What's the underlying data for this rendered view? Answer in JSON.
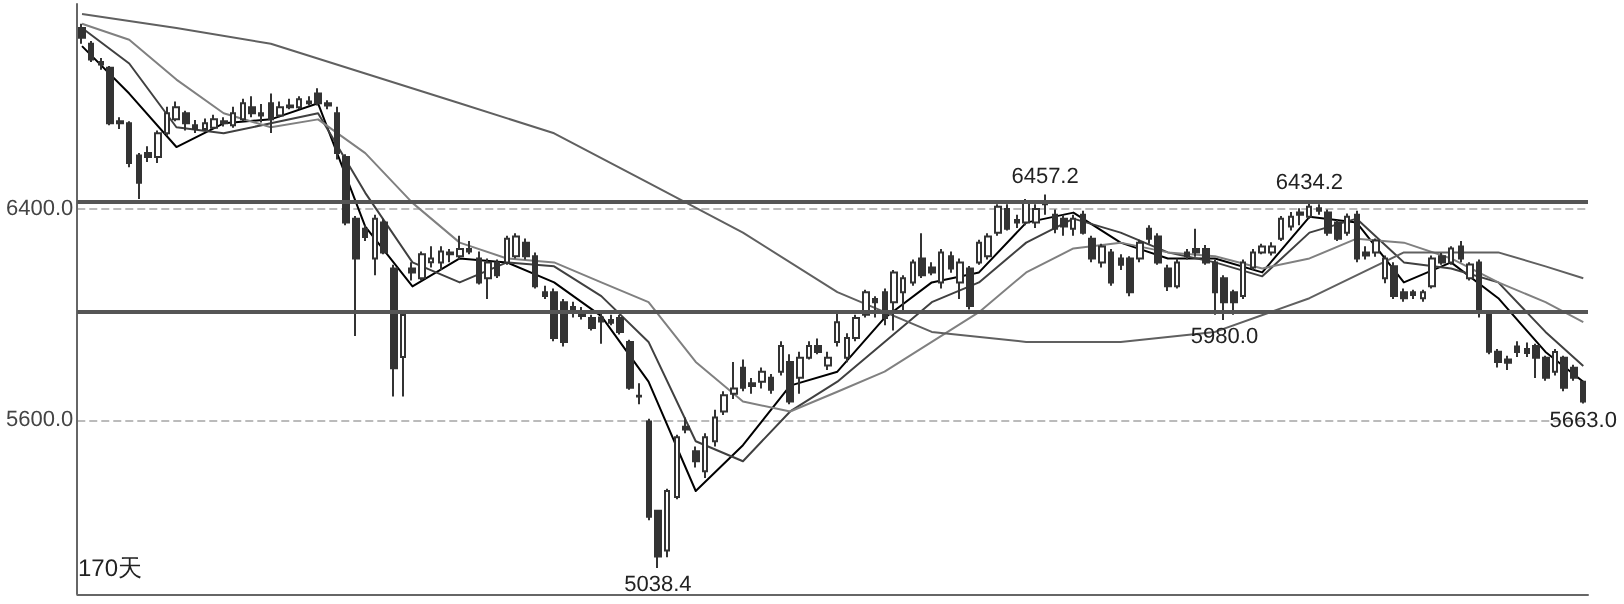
{
  "chart_data": {
    "type": "candlestick",
    "categories": [
      null,
      null,
      null,
      null,
      null,
      null,
      null,
      null,
      null,
      null,
      null,
      null,
      null,
      null,
      null,
      null,
      null,
      null,
      null,
      null,
      null,
      null,
      null,
      null,
      null,
      null,
      null,
      null,
      null,
      null,
      null,
      null,
      null,
      null,
      null,
      null,
      null,
      null,
      null,
      null,
      null,
      null,
      null,
      null,
      null,
      null,
      null,
      null,
      null,
      null,
      null,
      null,
      null,
      null,
      null,
      null,
      null,
      null,
      null,
      null,
      null,
      null,
      null,
      null,
      null,
      null,
      null,
      null,
      null,
      null,
      null,
      null,
      null,
      null,
      null,
      null,
      null,
      null,
      null,
      null,
      null,
      null,
      null,
      null,
      null,
      null,
      null,
      null,
      null,
      null,
      null,
      null,
      null,
      null,
      null,
      null,
      null,
      null,
      null,
      null,
      null,
      null,
      null,
      null,
      null,
      null,
      null,
      null,
      null,
      null,
      null,
      null,
      null,
      null,
      null,
      null,
      null,
      null,
      null,
      null,
      null,
      null,
      null,
      null,
      null,
      null,
      null,
      null,
      null,
      null,
      null,
      null,
      null,
      null,
      null,
      null,
      null,
      null,
      null,
      null,
      null,
      null,
      null,
      null,
      null,
      null,
      null,
      null,
      null,
      null,
      null,
      null,
      null,
      null,
      null,
      null,
      null,
      null,
      null,
      null
    ],
    "series": [
      {
        "type": "candlestick",
        "color": "#333333",
        "ohlc": [
          [
            7089,
            7105,
            7029,
            7052
          ],
          [
            7029,
            7040,
            6960,
            6969
          ],
          [
            6960,
            6975,
            6930,
            6950
          ],
          [
            6938,
            6945,
            6720,
            6727
          ],
          [
            6735,
            6750,
            6705,
            6727
          ],
          [
            6727,
            6735,
            6560,
            6576
          ],
          [
            6605,
            6614,
            6440,
            6501
          ],
          [
            6614,
            6640,
            6580,
            6599
          ],
          [
            6599,
            6700,
            6576,
            6689
          ],
          [
            6689,
            6790,
            6680,
            6765
          ],
          [
            6742,
            6810,
            6735,
            6788
          ],
          [
            6765,
            6775,
            6700,
            6727
          ],
          [
            6720,
            6740,
            6690,
            6705
          ],
          [
            6705,
            6745,
            6700,
            6727
          ],
          [
            6710,
            6760,
            6705,
            6742
          ],
          [
            6735,
            6750,
            6715,
            6727
          ],
          [
            6720,
            6790,
            6710,
            6765
          ],
          [
            6742,
            6820,
            6735,
            6803
          ],
          [
            6788,
            6830,
            6750,
            6765
          ],
          [
            6765,
            6800,
            6730,
            6757
          ],
          [
            6803,
            6840,
            6690,
            6742
          ],
          [
            6757,
            6810,
            6750,
            6788
          ],
          [
            6795,
            6820,
            6780,
            6788
          ],
          [
            6788,
            6830,
            6780,
            6818
          ],
          [
            6810,
            6830,
            6795,
            6803
          ],
          [
            6840,
            6860,
            6795,
            6803
          ],
          [
            6803,
            6815,
            6780,
            6795
          ],
          [
            6765,
            6790,
            6590,
            6614
          ],
          [
            6599,
            6610,
            6340,
            6350
          ],
          [
            6365,
            6375,
            5920,
            6214
          ],
          [
            6327,
            6340,
            6280,
            6295
          ],
          [
            6214,
            6380,
            6150,
            6365
          ],
          [
            6350,
            6365,
            6230,
            6237
          ],
          [
            6176,
            6190,
            5690,
            5797
          ],
          [
            5840,
            6010,
            5690,
            5999
          ],
          [
            6176,
            6200,
            6130,
            6161
          ],
          [
            6139,
            6240,
            6130,
            6230
          ],
          [
            6200,
            6260,
            6180,
            6214
          ],
          [
            6199,
            6260,
            6170,
            6240
          ],
          [
            6237,
            6250,
            6200,
            6230
          ],
          [
            6222,
            6300,
            6210,
            6250
          ],
          [
            6250,
            6280,
            6230,
            6240
          ],
          [
            6214,
            6240,
            6115,
            6123
          ],
          [
            6139,
            6214,
            6060,
            6199
          ],
          [
            6199,
            6210,
            6140,
            6150
          ],
          [
            6199,
            6300,
            6190,
            6289
          ],
          [
            6222,
            6310,
            6214,
            6297
          ],
          [
            6274,
            6290,
            6210,
            6222
          ],
          [
            6222,
            6237,
            6100,
            6108
          ],
          [
            6086,
            6110,
            6060,
            6071
          ],
          [
            6086,
            6100,
            5900,
            5912
          ],
          [
            6048,
            6060,
            5880,
            5897
          ],
          [
            6030,
            6050,
            5990,
            6010
          ],
          [
            6010,
            6030,
            5982,
            5995
          ],
          [
            5988,
            6000,
            5940,
            5950
          ],
          [
            5990,
            6010,
            5890,
            5975
          ],
          [
            5980,
            6000,
            5960,
            5970
          ],
          [
            5988,
            5999,
            5925,
            5935
          ],
          [
            5897,
            5905,
            5715,
            5723
          ],
          [
            5693,
            5740,
            5660,
            5690
          ],
          [
            5595,
            5605,
            5220,
            5233
          ],
          [
            5256,
            5260,
            5038.4,
            5082
          ],
          [
            5105,
            5340,
            5080,
            5331
          ],
          [
            5308,
            5545,
            5300,
            5535
          ],
          [
            5575,
            5610,
            5550,
            5565
          ],
          [
            5482,
            5500,
            5420,
            5444
          ],
          [
            5406,
            5550,
            5380,
            5535
          ],
          [
            5520,
            5640,
            5500,
            5610
          ],
          [
            5633,
            5710,
            5620,
            5695
          ],
          [
            5700,
            5821,
            5680,
            5720
          ],
          [
            5799,
            5830,
            5710,
            5723
          ],
          [
            5740,
            5760,
            5700,
            5730
          ],
          [
            5746,
            5800,
            5720,
            5784
          ],
          [
            5761,
            5775,
            5700,
            5715
          ],
          [
            5784,
            5900,
            5770,
            5882
          ],
          [
            5821,
            5850,
            5660,
            5671
          ],
          [
            5761,
            5860,
            5700,
            5837
          ],
          [
            5837,
            5900,
            5830,
            5882
          ],
          [
            5882,
            5910,
            5850,
            5859
          ],
          [
            5808,
            5860,
            5790,
            5837
          ],
          [
            5897,
            6010,
            5880,
            5972
          ],
          [
            5837,
            5930,
            5820,
            5912
          ],
          [
            5912,
            6000,
            5900,
            5988
          ],
          [
            6000,
            6095,
            5990,
            6086
          ],
          [
            6060,
            6070,
            5990,
            6048
          ],
          [
            6086,
            6100,
            5960,
            5988
          ],
          [
            6048,
            6170,
            5940,
            6161
          ],
          [
            6086,
            6150,
            6010,
            6139
          ],
          [
            6123,
            6210,
            6110,
            6199
          ],
          [
            6214,
            6310,
            6140,
            6150
          ],
          [
            6180,
            6200,
            6150,
            6161
          ],
          [
            6123,
            6250,
            6100,
            6237
          ],
          [
            6222,
            6240,
            6160,
            6176
          ],
          [
            6123,
            6214,
            6060,
            6199
          ],
          [
            6176,
            6185,
            6020,
            6033
          ],
          [
            6199,
            6285,
            6190,
            6274
          ],
          [
            6222,
            6310,
            6210,
            6297
          ],
          [
            6312,
            6420,
            6300,
            6410
          ],
          [
            6402,
            6420,
            6320,
            6327
          ],
          [
            6360,
            6380,
            6330,
            6350
          ],
          [
            6350,
            6440,
            6340,
            6425
          ],
          [
            6350,
            6420,
            6330,
            6402
          ],
          [
            6420,
            6457.2,
            6380,
            6425
          ],
          [
            6380,
            6400,
            6310,
            6327
          ],
          [
            6365,
            6380,
            6300,
            6335
          ],
          [
            6327,
            6380,
            6300,
            6365
          ],
          [
            6380,
            6395,
            6305,
            6312
          ],
          [
            6289,
            6300,
            6200,
            6214
          ],
          [
            6199,
            6270,
            6180,
            6259
          ],
          [
            6237,
            6250,
            6110,
            6123
          ],
          [
            6214,
            6230,
            6170,
            6190
          ],
          [
            6214,
            6222,
            6070,
            6086
          ],
          [
            6214,
            6285,
            6200,
            6274
          ],
          [
            6327,
            6340,
            6270,
            6289
          ],
          [
            6297,
            6310,
            6190,
            6199
          ],
          [
            6176,
            6190,
            6090,
            6108
          ],
          [
            6108,
            6214,
            6100,
            6199
          ],
          [
            6237,
            6250,
            6210,
            6222
          ],
          [
            6250,
            6327,
            6220,
            6237
          ],
          [
            6250,
            6265,
            6190,
            6199
          ],
          [
            6199,
            6210,
            6000,
            6086
          ],
          [
            6139,
            6150,
            5980.0,
            6048
          ],
          [
            6086,
            6095,
            6000,
            6048
          ],
          [
            6071,
            6210,
            6060,
            6199
          ],
          [
            6180,
            6250,
            6170,
            6237
          ],
          [
            6237,
            6270,
            6230,
            6259
          ],
          [
            6237,
            6275,
            6225,
            6259
          ],
          [
            6289,
            6375,
            6280,
            6365
          ],
          [
            6335,
            6390,
            6320,
            6372
          ],
          [
            6388,
            6405,
            6340,
            6380
          ],
          [
            6372,
            6434.2,
            6365,
            6410
          ],
          [
            6405,
            6420,
            6380,
            6395
          ],
          [
            6388,
            6400,
            6300,
            6312
          ],
          [
            6350,
            6360,
            6280,
            6289
          ],
          [
            6312,
            6385,
            6300,
            6372
          ],
          [
            6380,
            6395,
            6200,
            6214
          ],
          [
            6237,
            6260,
            6210,
            6225
          ],
          [
            6237,
            6290,
            6220,
            6282
          ],
          [
            6139,
            6225,
            6120,
            6214
          ],
          [
            6184,
            6200,
            6060,
            6071
          ],
          [
            6086,
            6100,
            6050,
            6063
          ],
          [
            6086,
            6095,
            6060,
            6075
          ],
          [
            6063,
            6095,
            6050,
            6086
          ],
          [
            6108,
            6225,
            6100,
            6214
          ],
          [
            6222,
            6235,
            6190,
            6199
          ],
          [
            6199,
            6260,
            6190,
            6252
          ],
          [
            6259,
            6280,
            6200,
            6214
          ],
          [
            6139,
            6200,
            6130,
            6191
          ],
          [
            6199,
            6210,
            5990,
            6010
          ],
          [
            6000,
            6010,
            5850,
            5860
          ],
          [
            5860,
            5870,
            5800,
            5821
          ],
          [
            5830,
            5845,
            5790,
            5818
          ],
          [
            5880,
            5900,
            5840,
            5859
          ],
          [
            5870,
            5895,
            5840,
            5855
          ],
          [
            5882,
            5890,
            5760,
            5837
          ],
          [
            5837,
            5845,
            5750,
            5761
          ],
          [
            5784,
            5870,
            5770,
            5859
          ],
          [
            5837,
            5845,
            5710,
            5723
          ],
          [
            5799,
            5810,
            5750,
            5761
          ],
          [
            5746,
            5750,
            5663.0,
            5671
          ]
        ]
      },
      {
        "type": "line",
        "color": "#000000",
        "values": [
          7020,
          null,
          null,
          null,
          null,
          6840,
          null,
          null,
          null,
          null,
          6637,
          null,
          null,
          null,
          null,
          6727,
          null,
          null,
          null,
          null,
          6742,
          null,
          null,
          null,
          null,
          6803,
          null,
          null,
          null,
          null,
          6335,
          null,
          null,
          null,
          null,
          6108,
          null,
          null,
          null,
          null,
          6214,
          null,
          null,
          null,
          null,
          6199,
          null,
          null,
          null,
          null,
          6123,
          null,
          null,
          null,
          null,
          5995,
          null,
          null,
          null,
          null,
          5746,
          null,
          null,
          null,
          null,
          5331,
          null,
          null,
          null,
          null,
          5505,
          null,
          null,
          null,
          null,
          5731,
          null,
          null,
          null,
          null,
          5784,
          null,
          null,
          null,
          null,
          5988,
          null,
          null,
          null,
          null,
          6123,
          null,
          null,
          null,
          null,
          6161,
          null,
          null,
          null,
          null,
          6350,
          null,
          null,
          null,
          null,
          6388,
          null,
          null,
          null,
          null,
          6274,
          null,
          null,
          null,
          null,
          6214,
          null,
          null,
          null,
          null,
          6214,
          null,
          null,
          null,
          null,
          6161,
          null,
          null,
          null,
          null,
          6372,
          null,
          null,
          null,
          null,
          6350,
          null,
          null,
          null,
          null,
          6123,
          null,
          null,
          null,
          null,
          6199,
          null,
          null,
          null,
          null,
          6063,
          null,
          null,
          null,
          null,
          5859,
          null,
          null,
          null,
          5746
        ]
      },
      {
        "type": "line",
        "color": "#404040",
        "values": [
          7089,
          null,
          null,
          null,
          null,
          6954,
          null,
          null,
          null,
          null,
          6712,
          null,
          null,
          null,
          null,
          6689,
          null,
          null,
          null,
          null,
          6727,
          null,
          null,
          null,
          null,
          6765,
          null,
          null,
          null,
          null,
          6463,
          null,
          null,
          null,
          null,
          6199,
          null,
          null,
          null,
          null,
          6123,
          null,
          null,
          null,
          null,
          6199,
          null,
          null,
          null,
          null,
          6184,
          null,
          null,
          null,
          null,
          6071,
          null,
          null,
          null,
          null,
          5897,
          null,
          null,
          null,
          null,
          5520,
          null,
          null,
          null,
          null,
          5444,
          null,
          null,
          null,
          null,
          5633,
          null,
          null,
          null,
          null,
          5746,
          null,
          null,
          null,
          null,
          5897,
          null,
          null,
          null,
          null,
          6048,
          null,
          null,
          null,
          null,
          6123,
          null,
          null,
          null,
          null,
          6274,
          null,
          null,
          null,
          null,
          6365,
          null,
          null,
          null,
          null,
          6312,
          null,
          null,
          null,
          null,
          6237,
          null,
          null,
          null,
          null,
          6199,
          null,
          null,
          null,
          null,
          6146,
          null,
          null,
          null,
          null,
          6312,
          null,
          null,
          null,
          null,
          6365,
          null,
          null,
          null,
          null,
          6199,
          null,
          null,
          null,
          null,
          6176,
          null,
          null,
          null,
          null,
          6123,
          null,
          null,
          null,
          null,
          5935,
          null,
          null,
          null,
          5806
        ]
      },
      {
        "type": "line",
        "color": "#808080",
        "values": [
          7105,
          null,
          null,
          null,
          null,
          7044,
          null,
          null,
          null,
          null,
          6893,
          null,
          null,
          null,
          null,
          6765,
          null,
          null,
          null,
          null,
          6712,
          null,
          null,
          null,
          null,
          6742,
          null,
          null,
          null,
          null,
          6614,
          null,
          null,
          null,
          null,
          6425,
          null,
          null,
          null,
          null,
          6274,
          null,
          null,
          null,
          null,
          6214,
          null,
          null,
          null,
          null,
          6199,
          null,
          null,
          null,
          null,
          6123,
          null,
          null,
          null,
          null,
          6048,
          null,
          null,
          null,
          null,
          5821,
          null,
          null,
          null,
          null,
          5671,
          null,
          null,
          null,
          null,
          5633,
          null,
          null,
          null,
          null,
          5708,
          null,
          null,
          null,
          null,
          5784,
          null,
          null,
          null,
          null,
          5897,
          null,
          null,
          null,
          null,
          6010,
          null,
          null,
          null,
          null,
          6161,
          null,
          null,
          null,
          null,
          6252,
          null,
          null,
          null,
          null,
          6274,
          null,
          null,
          null,
          null,
          6237,
          null,
          null,
          null,
          null,
          6222,
          null,
          null,
          null,
          null,
          6176,
          null,
          null,
          null,
          null,
          6214,
          null,
          null,
          null,
          null,
          6289,
          null,
          null,
          null,
          null,
          6274,
          null,
          null,
          null,
          null,
          6214,
          null,
          null,
          null,
          null,
          6123,
          null,
          null,
          null,
          null,
          6048,
          null,
          null,
          null,
          5972
        ]
      },
      {
        "type": "line",
        "color": "#606060",
        "values": [
          7142,
          null,
          null,
          null,
          null,
          null,
          null,
          null,
          null,
          null,
          7089,
          null,
          null,
          null,
          null,
          null,
          null,
          null,
          null,
          null,
          7029,
          null,
          null,
          null,
          null,
          null,
          null,
          null,
          null,
          null,
          6916,
          null,
          null,
          null,
          null,
          null,
          null,
          null,
          null,
          null,
          6803,
          null,
          null,
          null,
          null,
          null,
          null,
          null,
          null,
          null,
          6689,
          null,
          null,
          null,
          null,
          null,
          null,
          null,
          null,
          null,
          6501,
          null,
          null,
          null,
          null,
          null,
          null,
          null,
          null,
          null,
          6312,
          null,
          null,
          null,
          null,
          null,
          null,
          null,
          null,
          null,
          6086,
          null,
          null,
          null,
          null,
          null,
          null,
          null,
          null,
          null,
          5935,
          null,
          null,
          null,
          null,
          null,
          null,
          null,
          null,
          null,
          5897,
          null,
          null,
          null,
          null,
          null,
          null,
          null,
          null,
          null,
          5897,
          null,
          null,
          null,
          null,
          null,
          null,
          null,
          null,
          null,
          5935,
          null,
          null,
          null,
          null,
          null,
          null,
          null,
          null,
          null,
          6063,
          null,
          null,
          null,
          null,
          null,
          null,
          null,
          null,
          null,
          6237,
          null,
          null,
          null,
          null,
          null,
          null,
          null,
          null,
          null,
          6237,
          null,
          null,
          null,
          null,
          6184,
          null,
          null,
          null,
          6139
        ]
      }
    ],
    "ylim": [
      4940,
      7180
    ],
    "yticks": [
      {
        "value": 5600,
        "label": "5600.0"
      },
      {
        "value": 6400,
        "label": "6400.0"
      }
    ],
    "grid": "y",
    "tick_labels": "y",
    "ref_lines": [
      {
        "axis": "y",
        "value": 6430,
        "color": "#555555"
      },
      {
        "axis": "y",
        "value": 6010,
        "color": "#555555"
      }
    ],
    "annotations": [
      {
        "text": "6457.2",
        "y": 6457.2
      },
      {
        "text": "6434.2",
        "y": 6434.2
      },
      {
        "text": "5980.0",
        "y": 5980.0
      },
      {
        "text": "5663.0",
        "y": 5663.0
      },
      {
        "text": "5038.4",
        "y": 5038.4
      },
      "170天"
    ]
  }
}
